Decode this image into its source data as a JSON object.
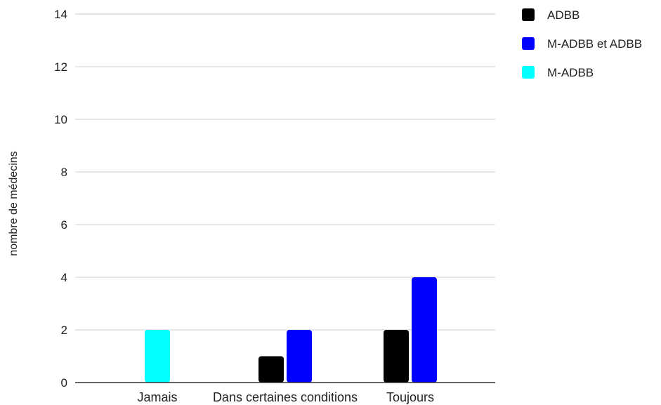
{
  "chart_data": {
    "type": "bar",
    "title": "",
    "xlabel": "",
    "ylabel": "nombre de médecins",
    "ylim": [
      0,
      14
    ],
    "yticks": [
      0,
      2,
      4,
      6,
      8,
      10,
      12,
      14
    ],
    "grid": true,
    "legend_position": "top-right",
    "categories": [
      "Jamais",
      "Dans certaines conditions",
      "Toujours"
    ],
    "series": [
      {
        "name": "ADBB",
        "color": "#000000",
        "values": [
          0,
          1,
          2
        ]
      },
      {
        "name": "M-ADBB et ADBB",
        "color": "#0000ff",
        "values": [
          0,
          2,
          4
        ]
      },
      {
        "name": "M-ADBB",
        "color": "#00ffff",
        "values": [
          2,
          0,
          0
        ]
      }
    ]
  }
}
